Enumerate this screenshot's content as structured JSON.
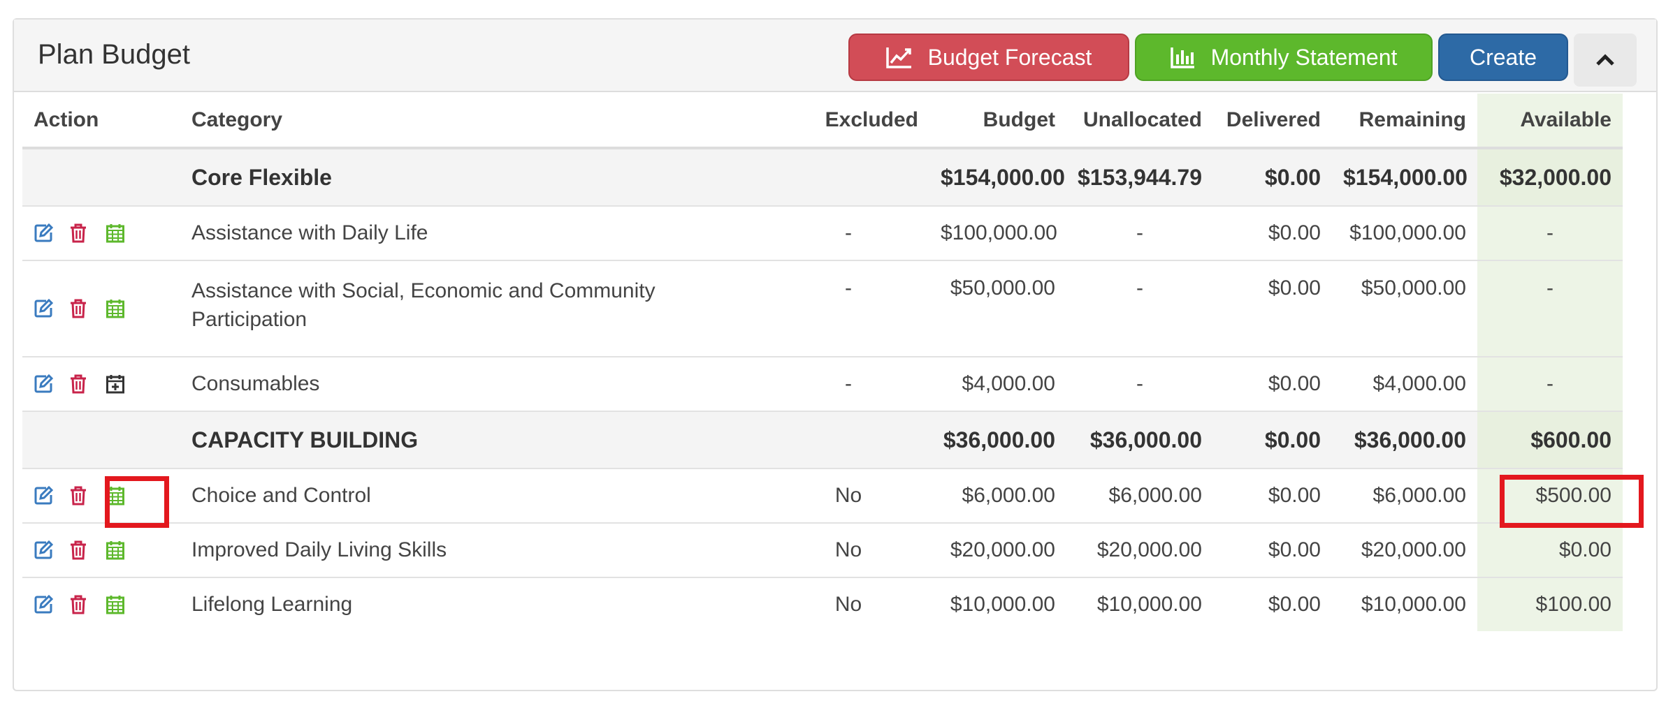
{
  "header": {
    "title": "Plan Budget",
    "buttons": {
      "forecast": "Budget Forecast",
      "monthly": "Monthly Statement",
      "create": "Create"
    }
  },
  "columns": {
    "action": "Action",
    "category": "Category",
    "excluded": "Excluded",
    "budget": "Budget",
    "unallocated": "Unallocated",
    "delivered": "Delivered",
    "remaining": "Remaining",
    "available": "Available"
  },
  "groups": [
    {
      "name": "Core Flexible",
      "budget": "$154,000.00",
      "unallocated": "$153,944.79",
      "delivered": "$0.00",
      "remaining": "$154,000.00",
      "available": "$32,000.00",
      "rows": [
        {
          "category": "Assistance with Daily Life",
          "excluded": "-",
          "budget": "$100,000.00",
          "unallocated": "-",
          "delivered": "$0.00",
          "remaining": "$100,000.00",
          "available": "-",
          "calendar_icon": "calendar-icon"
        },
        {
          "category": "Assistance with Social, Economic and Community Participation",
          "excluded": "-",
          "budget": "$50,000.00",
          "unallocated": "-",
          "delivered": "$0.00",
          "remaining": "$50,000.00",
          "available": "-",
          "calendar_icon": "calendar-icon"
        },
        {
          "category": "Consumables",
          "excluded": "-",
          "budget": "$4,000.00",
          "unallocated": "-",
          "delivered": "$0.00",
          "remaining": "$4,000.00",
          "available": "-",
          "calendar_icon": "calendar-plus-icon"
        }
      ]
    },
    {
      "name": "CAPACITY BUILDING",
      "budget": "$36,000.00",
      "unallocated": "$36,000.00",
      "delivered": "$0.00",
      "remaining": "$36,000.00",
      "available": "$600.00",
      "rows": [
        {
          "category": "Choice and Control",
          "excluded": "No",
          "budget": "$6,000.00",
          "unallocated": "$6,000.00",
          "delivered": "$0.00",
          "remaining": "$6,000.00",
          "available": "$500.00",
          "calendar_icon": "calendar-icon"
        },
        {
          "category": "Improved Daily Living Skills",
          "excluded": "No",
          "budget": "$20,000.00",
          "unallocated": "$20,000.00",
          "delivered": "$0.00",
          "remaining": "$20,000.00",
          "available": "$0.00",
          "calendar_icon": "calendar-icon"
        },
        {
          "category": "Lifelong Learning",
          "excluded": "No",
          "budget": "$10,000.00",
          "unallocated": "$10,000.00",
          "delivered": "$0.00",
          "remaining": "$10,000.00",
          "available": "$100.00",
          "calendar_icon": "calendar-icon"
        }
      ]
    }
  ],
  "colors": {
    "edit": "#3a7bbf",
    "delete": "#c8234a",
    "calendar": "#5db82c",
    "calendar_plus": "#333333",
    "highlight": "#e3181e"
  }
}
